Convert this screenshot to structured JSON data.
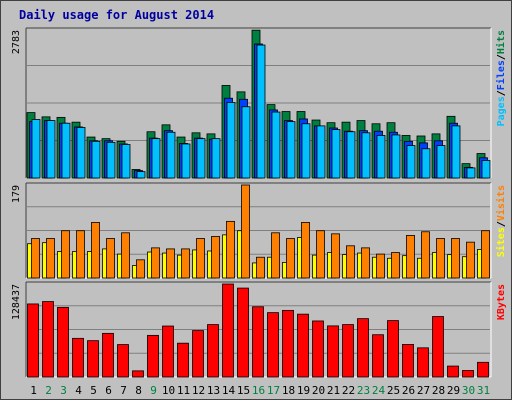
{
  "chart_data": {
    "type": "bar",
    "title": "Daily usage for August 2014",
    "categories": [
      "1",
      "2",
      "3",
      "4",
      "5",
      "6",
      "7",
      "8",
      "9",
      "10",
      "11",
      "12",
      "13",
      "14",
      "15",
      "16",
      "17",
      "18",
      "19",
      "20",
      "21",
      "22",
      "23",
      "24",
      "25",
      "26",
      "27",
      "28",
      "29",
      "30",
      "31"
    ],
    "weekend_days": [
      "2",
      "3",
      "9",
      "16",
      "17",
      "23",
      "24",
      "30",
      "31"
    ],
    "panels": [
      {
        "name": "pages-files-hits",
        "ymax_label": "2783",
        "ymax": 2783,
        "legend": [
          "Pages",
          "/",
          "Files",
          "/",
          "Hits"
        ],
        "series": [
          {
            "name": "Hits",
            "values": [
              1230,
              1150,
              1140,
              1050,
              770,
              740,
              690,
              160,
              870,
              1000,
              770,
              850,
              830,
              1740,
              1620,
              2780,
              1380,
              1250,
              1250,
              1090,
              1040,
              1050,
              1080,
              1020,
              1040,
              800,
              790,
              830,
              1160,
              270,
              460
            ]
          },
          {
            "name": "Files",
            "values": [
              1060,
              1080,
              1030,
              960,
              700,
              700,
              640,
              140,
              750,
              890,
              650,
              750,
              730,
              1500,
              1480,
              2520,
              1280,
              1080,
              1110,
              980,
              940,
              880,
              890,
              880,
              860,
              690,
              660,
              700,
              1030,
              200,
              380
            ]
          },
          {
            "name": "Pages",
            "values": [
              1100,
              1080,
              1030,
              950,
              690,
              670,
              630,
              120,
              740,
              860,
              640,
              740,
              740,
              1420,
              1340,
              2500,
              1240,
              1060,
              1020,
              980,
              910,
              870,
              850,
              800,
              810,
              610,
              550,
              610,
              980,
              190,
              330
            ]
          }
        ]
      },
      {
        "name": "sites-visits",
        "ymax_label": "179",
        "ymax": 179,
        "legend": [
          "Sites",
          "/",
          "Visits"
        ],
        "series": [
          {
            "name": "Visits",
            "values": [
              66,
              68,
              51,
              51,
              51,
              56,
              46,
              24,
              50,
              48,
              44,
              54,
              52,
              83,
              91,
              29,
              40,
              30,
              78,
              44,
              49,
              45,
              48,
              40,
              38,
              43,
              38,
              49,
              45,
              41,
              55
            ]
          },
          {
            "name": "Sites",
            "values": [
              76,
              76,
              91,
              91,
              107,
              76,
              87,
              35,
              58,
              56,
              56,
              76,
              80,
              109,
              179,
              40,
              87,
              76,
              107,
              91,
              85,
              62,
              58,
              46,
              49,
              82,
              89,
              76,
              76,
              69,
              91
            ]
          }
        ]
      },
      {
        "name": "kbytes",
        "ymax_label": "128437",
        "ymax": 128437,
        "legend": [
          "KBytes"
        ],
        "series": [
          {
            "name": "KBytes",
            "values": [
              100900,
              104200,
              96200,
              53400,
              50200,
              60300,
              44800,
              8500,
              57500,
              70400,
              46700,
              64100,
              72400,
              128400,
              122800,
              97000,
              88900,
              92000,
              86800,
              77400,
              70600,
              72400,
              80600,
              58400,
              77900,
              45000,
              40300,
              83500,
              15100,
              9000,
              20300
            ]
          }
        ]
      }
    ]
  }
}
